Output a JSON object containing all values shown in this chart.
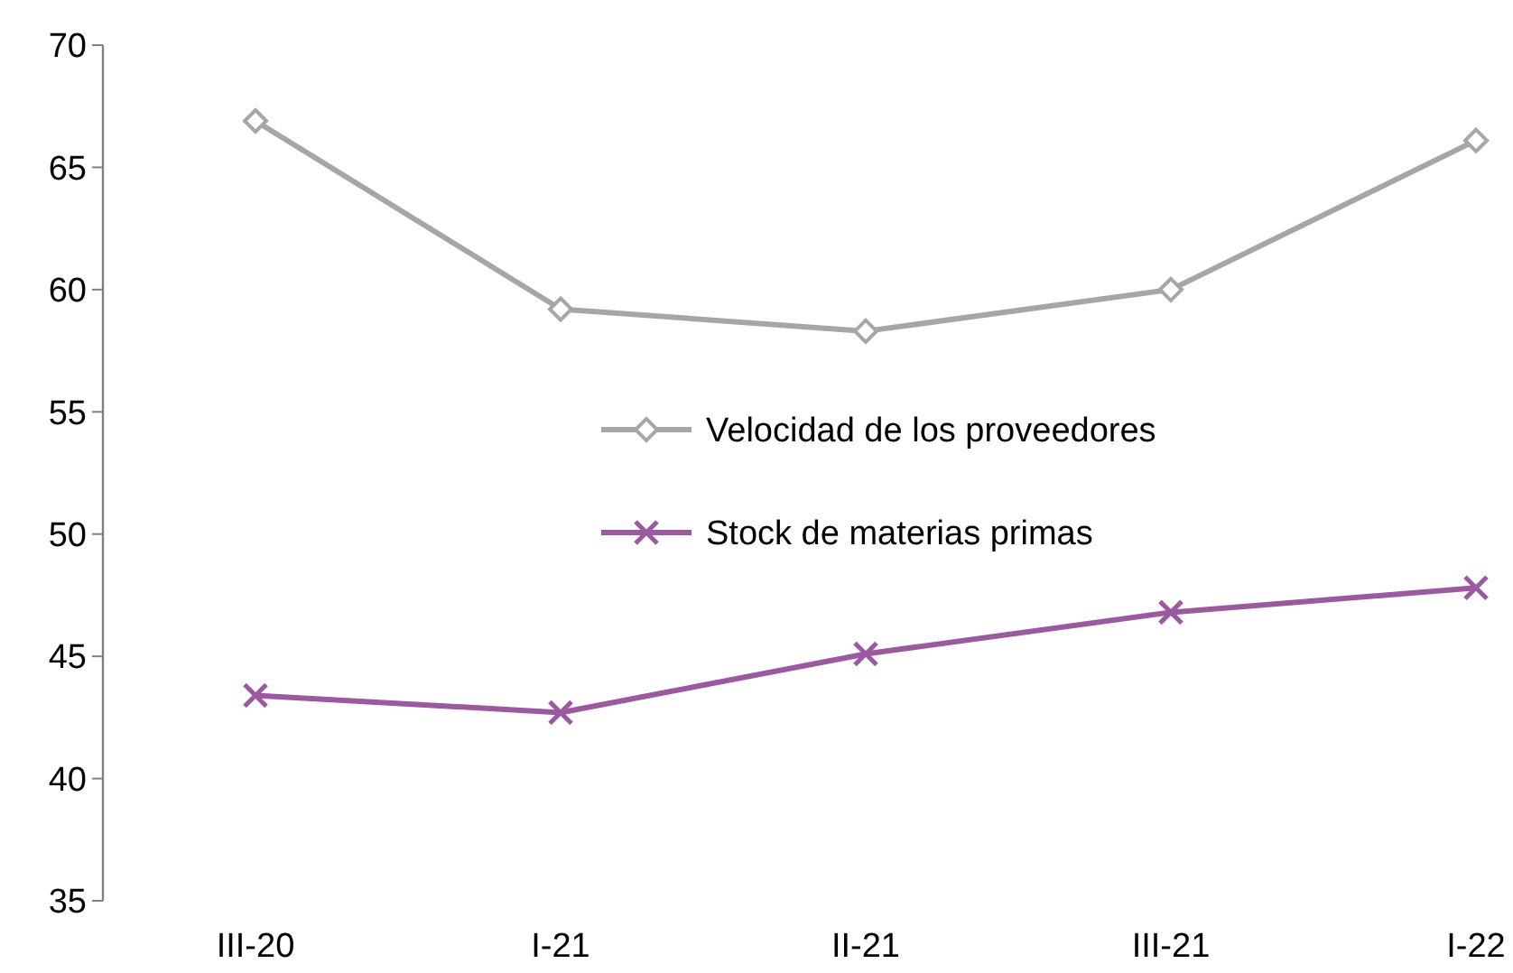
{
  "chart_data": {
    "type": "line",
    "categories": [
      "III-20",
      "I-21",
      "II-21",
      "III-21",
      "I-22"
    ],
    "series": [
      {
        "name": "Velocidad de los proveedores",
        "color": "#a6a6a6",
        "marker": "diamond",
        "values": [
          66.9,
          59.2,
          58.3,
          60.0,
          66.1
        ]
      },
      {
        "name": "Stock de materias primas",
        "color": "#9b5a9f",
        "marker": "cross",
        "values": [
          43.4,
          42.7,
          45.1,
          46.8,
          47.8
        ]
      }
    ],
    "ylim": [
      35,
      70
    ],
    "yticks": [
      35,
      40,
      45,
      50,
      55,
      60,
      65,
      70
    ],
    "grid": false,
    "legend": "center"
  }
}
